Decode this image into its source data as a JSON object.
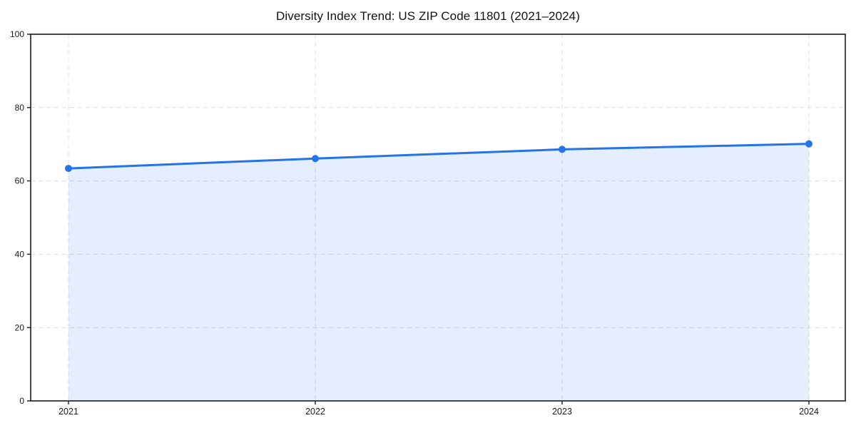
{
  "chart_data": {
    "type": "area",
    "title": "Diversity Index Trend: US ZIP Code 11801 (2021–2024)",
    "series_name": "Diversity Index",
    "categories": [
      "2021",
      "2022",
      "2023",
      "2024"
    ],
    "values": [
      63.4,
      66.1,
      68.6,
      70.1
    ],
    "xlabel": "",
    "ylabel": "",
    "ylim": [
      0,
      100
    ],
    "yticks": [
      0,
      20,
      40,
      60,
      80,
      100
    ],
    "grid": "dashed",
    "legend": "none",
    "colors": {
      "line": "#2573e8",
      "marker": "#2573e8",
      "fill": "rgba(37, 115, 232, 0.12)",
      "spine": "#1a1a1a",
      "grid": "#dcdcdc",
      "tick_label": "#1a1a1a",
      "title": "#111111",
      "background": "#ffffff"
    }
  }
}
